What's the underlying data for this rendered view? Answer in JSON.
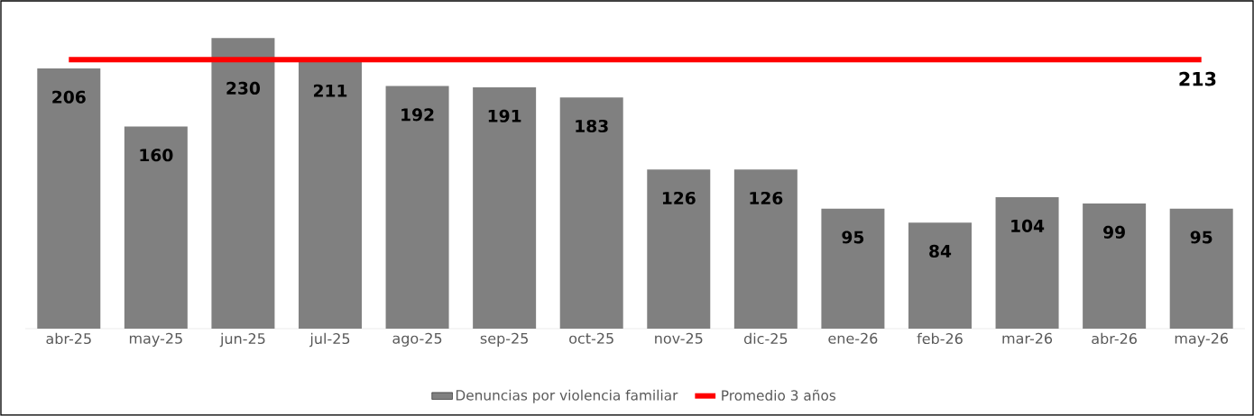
{
  "chart_data": {
    "type": "bar",
    "categories": [
      "abr-25",
      "may-25",
      "jun-25",
      "jul-25",
      "ago-25",
      "sep-25",
      "oct-25",
      "nov-25",
      "dic-25",
      "ene-26",
      "feb-26",
      "mar-26",
      "abr-26",
      "may-26"
    ],
    "series": [
      {
        "name": "Denuncias por violencia familiar",
        "color": "#808080",
        "values": [
          206,
          160,
          230,
          211,
          192,
          191,
          183,
          126,
          126,
          95,
          84,
          104,
          99,
          95
        ]
      },
      {
        "name": "Promedio 3 años",
        "type": "line",
        "color": "#ff0000",
        "values": [
          213,
          213,
          213,
          213,
          213,
          213,
          213,
          213,
          213,
          213,
          213,
          213,
          213,
          213
        ],
        "value_labels": [
          null,
          null,
          null,
          null,
          null,
          null,
          null,
          null,
          null,
          null,
          null,
          null,
          null,
          "213"
        ]
      }
    ],
    "data_labels": true,
    "legend": "bottom"
  }
}
